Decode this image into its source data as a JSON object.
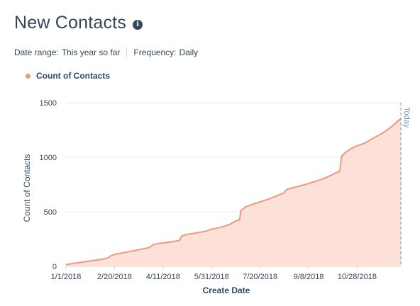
{
  "header": {
    "title": "New Contacts",
    "info_icon": "info-icon"
  },
  "filters": {
    "date_range_label": "Date range:",
    "date_range_value": "This year so far",
    "frequency_label": "Frequency:",
    "frequency_value": "Daily"
  },
  "colors": {
    "series_line": "#f2987c",
    "series_fill": "#fde0d8",
    "legend_dot": "#f2987c",
    "grid": "#e5e8eb",
    "today_line": "#7c98b6",
    "text": "#33475b"
  },
  "chart_data": {
    "type": "area",
    "xlabel": "Create Date",
    "ylabel": "Count of Contacts",
    "ylim": [
      0,
      1500
    ],
    "xlim": [
      "2018-01-01",
      "2018-12-12"
    ],
    "grid": true,
    "legend": "top-left",
    "y_ticks": [
      "0",
      "500",
      "1000",
      "1500"
    ],
    "x_ticks": [
      "1/1/2018",
      "2/20/2018",
      "4/11/2018",
      "5/31/2018",
      "7/20/2018",
      "9/8/2018",
      "10/28/2018"
    ],
    "today_label": "Today",
    "series": [
      {
        "name": "Count of Contacts",
        "points": [
          [
            "2018-01-01",
            15
          ],
          [
            "2018-01-05",
            22
          ],
          [
            "2018-01-15",
            35
          ],
          [
            "2018-01-25",
            48
          ],
          [
            "2018-02-05",
            62
          ],
          [
            "2018-02-13",
            75
          ],
          [
            "2018-02-16",
            95
          ],
          [
            "2018-02-20",
            110
          ],
          [
            "2018-03-01",
            125
          ],
          [
            "2018-03-10",
            140
          ],
          [
            "2018-03-20",
            158
          ],
          [
            "2018-03-28",
            172
          ],
          [
            "2018-04-01",
            200
          ],
          [
            "2018-04-11",
            215
          ],
          [
            "2018-04-20",
            225
          ],
          [
            "2018-04-28",
            238
          ],
          [
            "2018-04-30",
            275
          ],
          [
            "2018-05-05",
            292
          ],
          [
            "2018-05-15",
            305
          ],
          [
            "2018-05-25",
            322
          ],
          [
            "2018-05-31",
            340
          ],
          [
            "2018-06-08",
            355
          ],
          [
            "2018-06-15",
            372
          ],
          [
            "2018-06-20",
            390
          ],
          [
            "2018-06-24",
            412
          ],
          [
            "2018-06-29",
            428
          ],
          [
            "2018-06-30",
            510
          ],
          [
            "2018-07-05",
            545
          ],
          [
            "2018-07-12",
            568
          ],
          [
            "2018-07-20",
            590
          ],
          [
            "2018-07-28",
            615
          ],
          [
            "2018-08-05",
            642
          ],
          [
            "2018-08-13",
            670
          ],
          [
            "2018-08-17",
            708
          ],
          [
            "2018-08-25",
            725
          ],
          [
            "2018-09-01",
            742
          ],
          [
            "2018-09-08",
            760
          ],
          [
            "2018-09-15",
            780
          ],
          [
            "2018-09-22",
            800
          ],
          [
            "2018-09-30",
            830
          ],
          [
            "2018-10-06",
            858
          ],
          [
            "2018-10-10",
            870
          ],
          [
            "2018-10-12",
            1010
          ],
          [
            "2018-10-16",
            1045
          ],
          [
            "2018-10-22",
            1080
          ],
          [
            "2018-10-28",
            1105
          ],
          [
            "2018-11-05",
            1130
          ],
          [
            "2018-11-12",
            1168
          ],
          [
            "2018-11-20",
            1205
          ],
          [
            "2018-11-28",
            1250
          ],
          [
            "2018-12-05",
            1300
          ],
          [
            "2018-12-12",
            1355
          ]
        ]
      }
    ]
  }
}
